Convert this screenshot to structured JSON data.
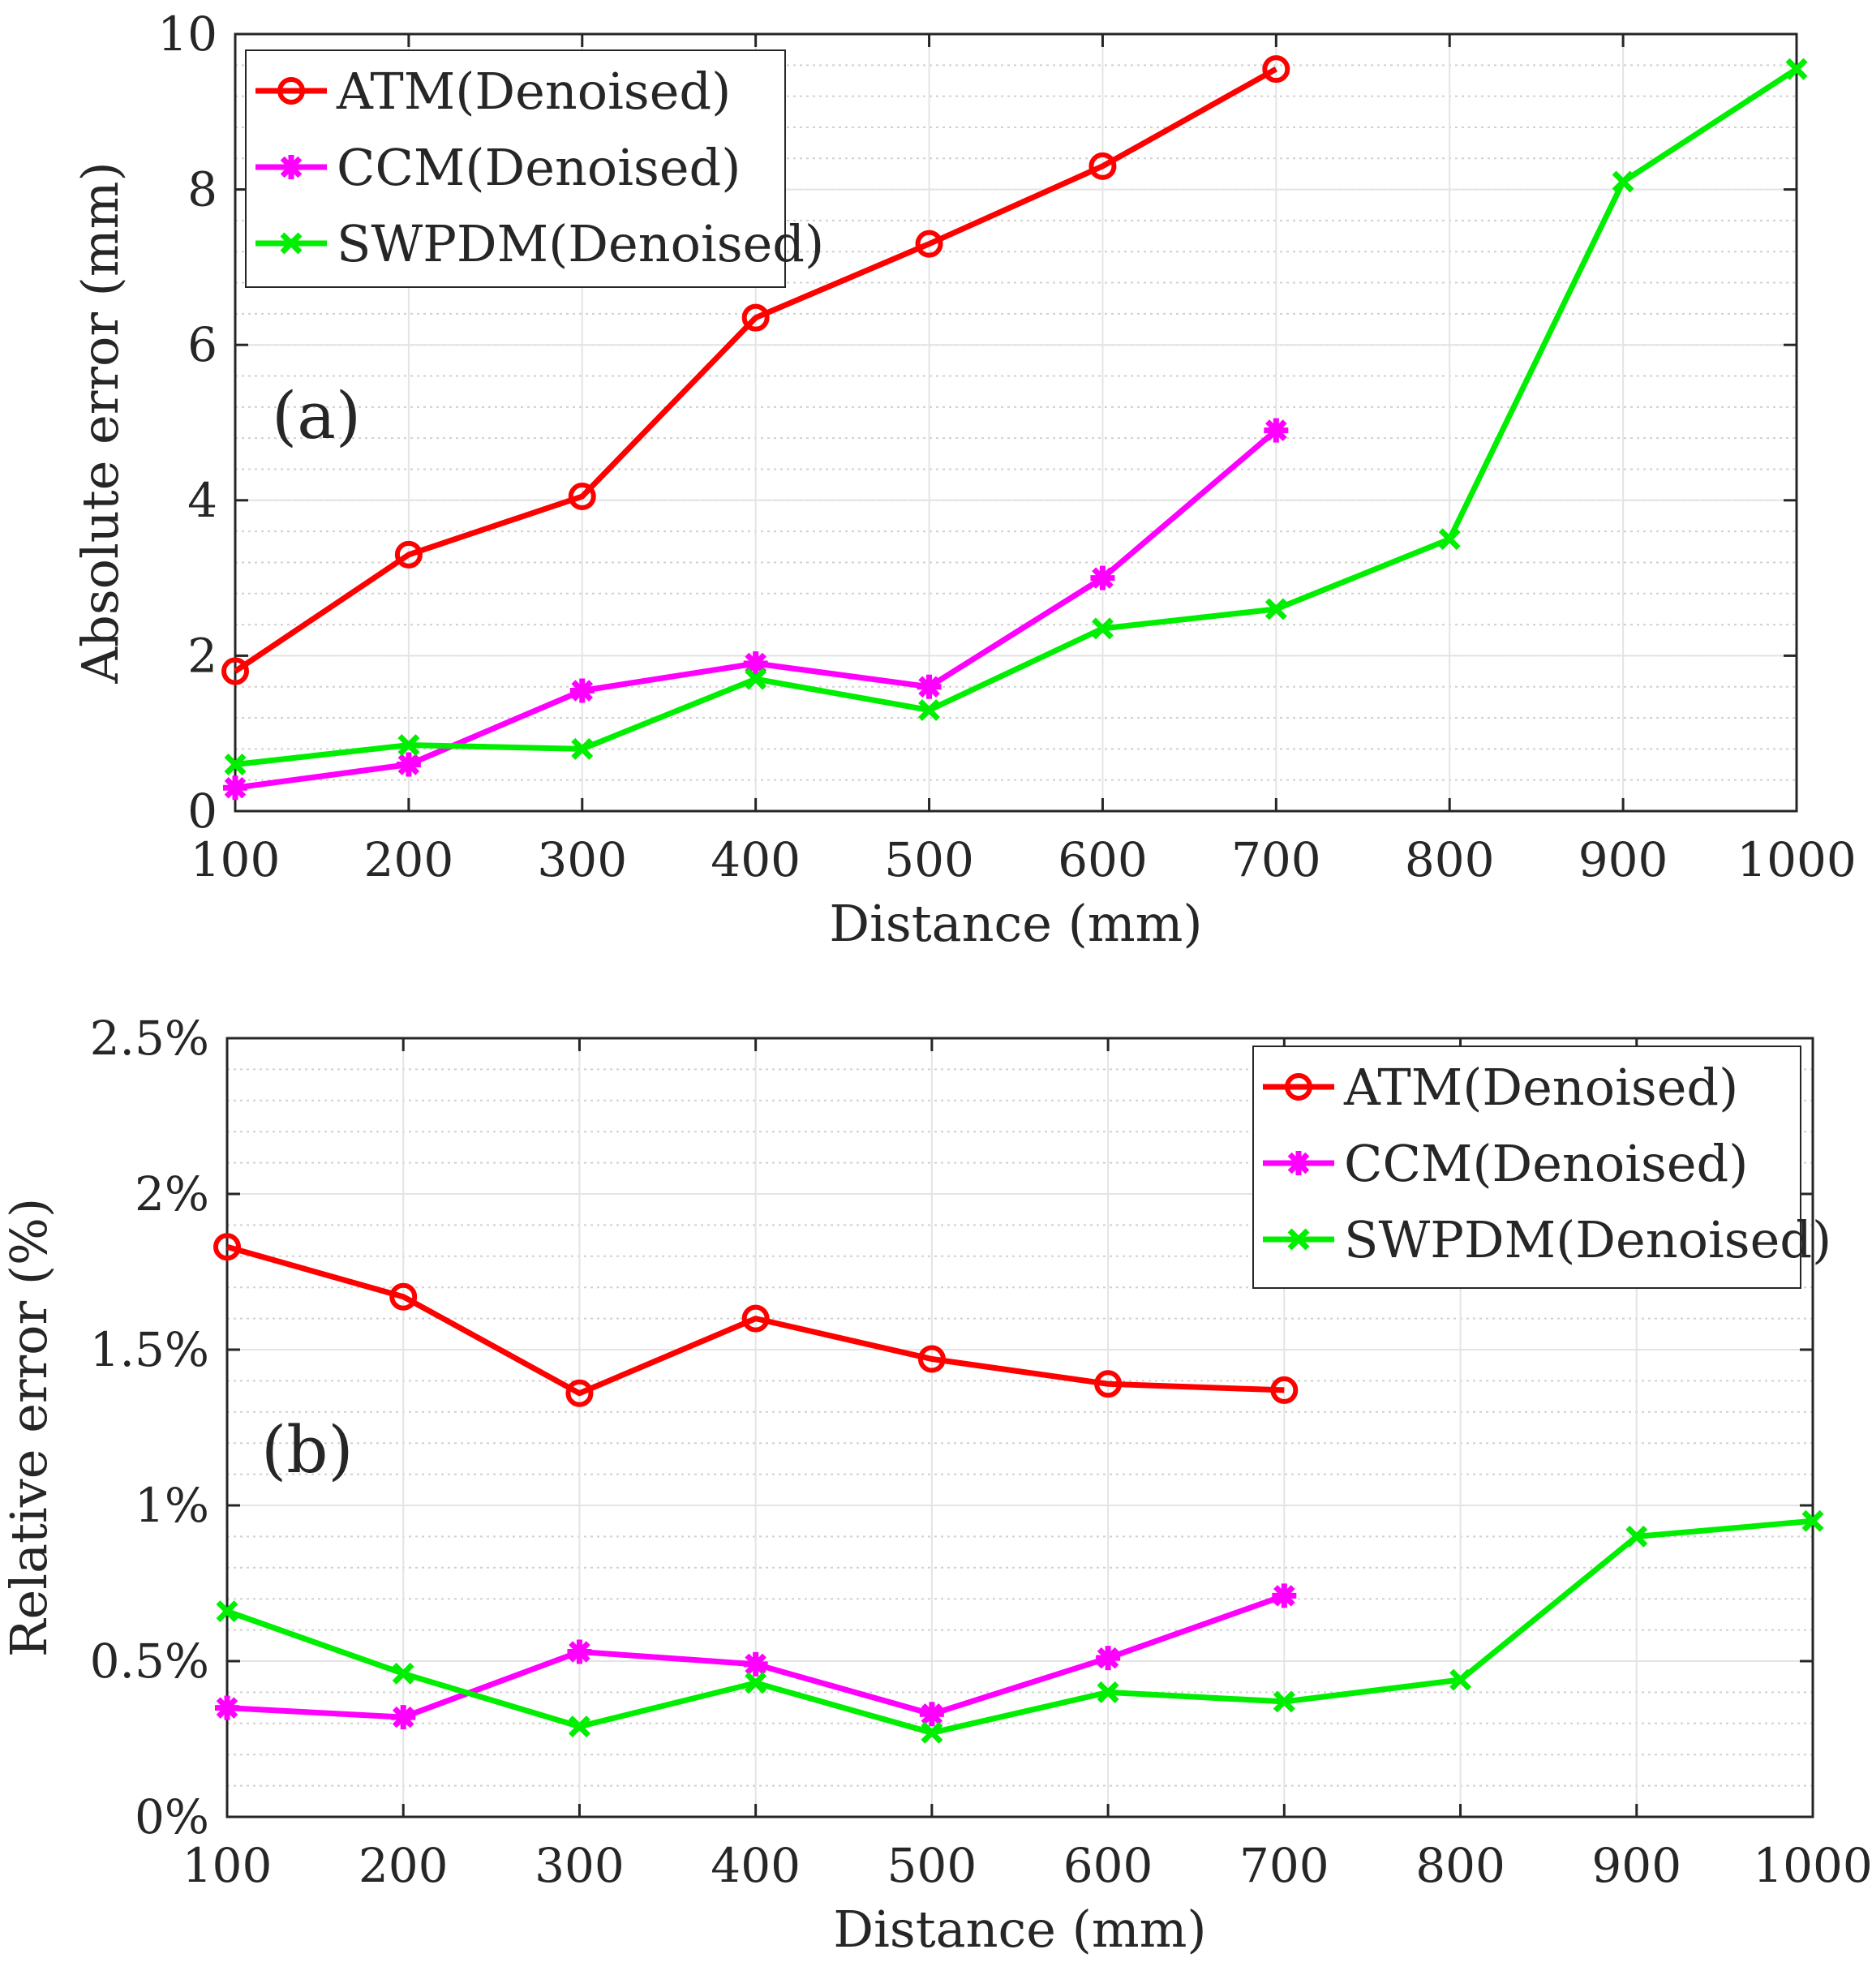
{
  "chart_data": [
    {
      "type": "line",
      "panel_label": "(a)",
      "xlabel": "Distance (mm)",
      "ylabel": "Absolute error (mm)",
      "xlim": [
        100,
        1000
      ],
      "ylim": [
        0,
        10
      ],
      "x_ticks": [
        "100",
        "200",
        "300",
        "400",
        "500",
        "600",
        "700",
        "800",
        "900",
        "1000"
      ],
      "y_ticks": [
        "0",
        "2",
        "4",
        "6",
        "8",
        "10"
      ],
      "y_tick_values": [
        0,
        2,
        4,
        6,
        8,
        10
      ],
      "grid": true,
      "legend_position": "top-left",
      "series": [
        {
          "name": "ATM(Denoised)",
          "color": "#ff0000",
          "marker": "circle",
          "x": [
            100,
            200,
            300,
            400,
            500,
            600,
            700
          ],
          "y": [
            1.8,
            3.3,
            4.05,
            6.35,
            7.3,
            8.3,
            9.55
          ]
        },
        {
          "name": "CCM(Denoised)",
          "color": "#ff00ff",
          "marker": "asterisk",
          "x": [
            100,
            200,
            300,
            400,
            500,
            600,
            700
          ],
          "y": [
            0.3,
            0.6,
            1.55,
            1.9,
            1.6,
            3.0,
            4.9
          ]
        },
        {
          "name": "SWPDM(Denoised)",
          "color": "#00ee00",
          "marker": "x",
          "x": [
            100,
            200,
            300,
            400,
            500,
            600,
            700,
            800,
            900,
            1000
          ],
          "y": [
            0.6,
            0.85,
            0.8,
            1.7,
            1.3,
            2.35,
            2.6,
            3.5,
            8.1,
            9.55
          ]
        }
      ]
    },
    {
      "type": "line",
      "panel_label": "(b)",
      "xlabel": "Distance (mm)",
      "ylabel": "Relative error (%)",
      "xlim": [
        100,
        1000
      ],
      "ylim": [
        0,
        2.5
      ],
      "x_ticks": [
        "100",
        "200",
        "300",
        "400",
        "500",
        "600",
        "700",
        "800",
        "900",
        "1000"
      ],
      "y_ticks": [
        "0%",
        "0.5%",
        "1%",
        "1.5%",
        "2%",
        "2.5%"
      ],
      "y_tick_values": [
        0,
        0.5,
        1,
        1.5,
        2,
        2.5
      ],
      "grid": true,
      "legend_position": "top-right",
      "series": [
        {
          "name": "ATM(Denoised)",
          "color": "#ff0000",
          "marker": "circle",
          "x": [
            100,
            200,
            300,
            400,
            500,
            600,
            700
          ],
          "y": [
            1.83,
            1.67,
            1.36,
            1.6,
            1.47,
            1.39,
            1.37
          ]
        },
        {
          "name": "CCM(Denoised)",
          "color": "#ff00ff",
          "marker": "asterisk",
          "x": [
            100,
            200,
            300,
            400,
            500,
            600,
            700
          ],
          "y": [
            0.35,
            0.32,
            0.53,
            0.49,
            0.33,
            0.51,
            0.71
          ]
        },
        {
          "name": "SWPDM(Denoised)",
          "color": "#00ee00",
          "marker": "x",
          "x": [
            100,
            200,
            300,
            400,
            500,
            600,
            700,
            800,
            900,
            1000
          ],
          "y": [
            0.66,
            0.46,
            0.29,
            0.43,
            0.27,
            0.4,
            0.37,
            0.44,
            0.9,
            0.95
          ]
        }
      ]
    }
  ]
}
